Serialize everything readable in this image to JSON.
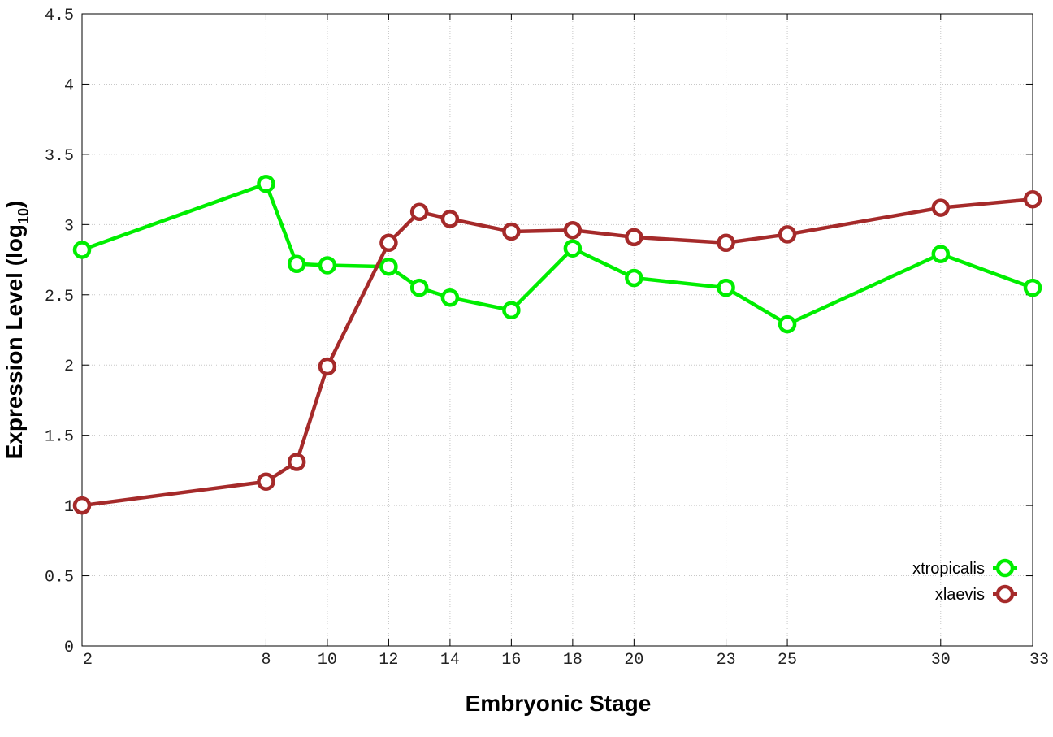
{
  "chart_data": {
    "type": "line",
    "title": "",
    "xlabel": "Embryonic Stage",
    "ylabel": {
      "main": "Expression Level (log",
      "subscript": "10",
      "close": ")"
    },
    "x": [
      2,
      8,
      9,
      10,
      12,
      13,
      14,
      16,
      18,
      20,
      23,
      25,
      30,
      33
    ],
    "x_ticks": [
      2,
      8,
      10,
      12,
      14,
      16,
      18,
      20,
      23,
      25,
      30,
      33
    ],
    "xlim": [
      2,
      33
    ],
    "y_ticks": [
      "0",
      "0.5",
      "1",
      "1.5",
      "2",
      "2.5",
      "3",
      "3.5",
      "4",
      "4.5"
    ],
    "ylim": [
      0,
      4.5
    ],
    "grid": true,
    "legend_position": "bottom-right",
    "series": [
      {
        "name": "xtropicalis",
        "color": "#00ee00",
        "marker": "circle-open",
        "values": [
          2.82,
          3.29,
          2.72,
          2.71,
          2.7,
          2.55,
          2.48,
          2.39,
          2.83,
          2.62,
          2.55,
          2.29,
          2.79,
          2.55
        ]
      },
      {
        "name": "xlaevis",
        "color": "#a52a2a",
        "marker": "circle-open",
        "values": [
          1.0,
          1.17,
          1.31,
          1.99,
          2.87,
          3.09,
          3.04,
          2.95,
          2.96,
          2.91,
          2.87,
          2.93,
          3.12,
          3.18
        ]
      }
    ]
  }
}
